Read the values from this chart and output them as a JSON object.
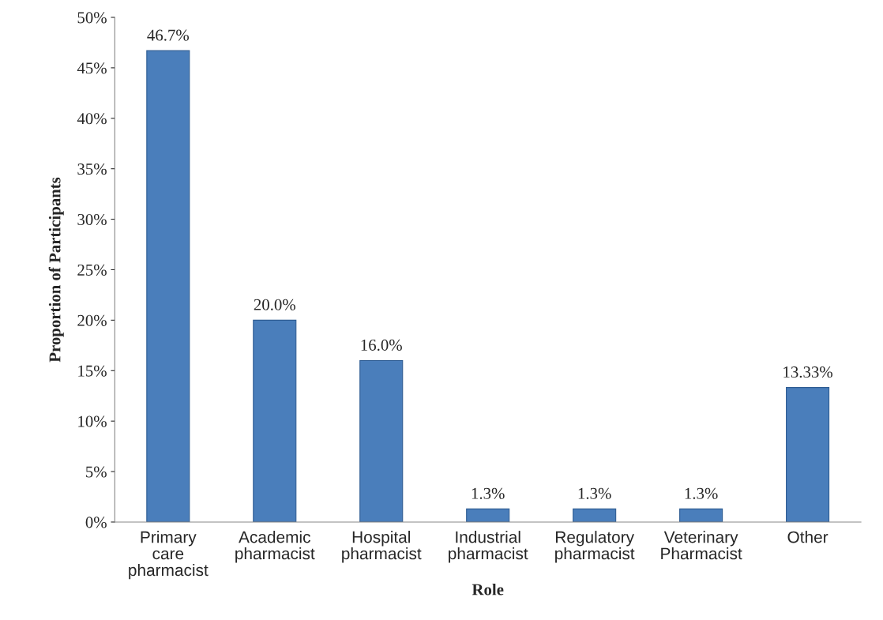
{
  "chart_data": {
    "type": "bar",
    "xlabel": "Role",
    "ylabel": "Proportion of Participants",
    "categories": [
      "Primary\ncare\npharmacist",
      "Academic\npharmacist",
      "Hospital\npharmacist",
      "Industrial\npharmacist",
      "Regulatory\npharmacist",
      "Veterinary\nPharmacist",
      "Other"
    ],
    "values": [
      46.7,
      20.0,
      16.0,
      1.3,
      1.3,
      1.3,
      13.33
    ],
    "value_labels": [
      "46.7%",
      "20.0%",
      "16.0%",
      "1.3%",
      "1.3%",
      "1.3%",
      "13.33%"
    ],
    "color": "#4a7ebb",
    "ylim": [
      0,
      50
    ],
    "yticks": [
      {
        "value": 0,
        "label": "0%"
      },
      {
        "value": 5,
        "label": "5%"
      },
      {
        "value": 10,
        "label": "10%"
      },
      {
        "value": 15,
        "label": "15%"
      },
      {
        "value": 20,
        "label": "20%"
      },
      {
        "value": 25,
        "label": "25%"
      },
      {
        "value": 30,
        "label": "30%"
      },
      {
        "value": 35,
        "label": "35%"
      },
      {
        "value": 40,
        "label": "40%"
      },
      {
        "value": 45,
        "label": "45%"
      },
      {
        "value": 50,
        "label": "50%"
      }
    ],
    "grid": false,
    "legend": false
  }
}
